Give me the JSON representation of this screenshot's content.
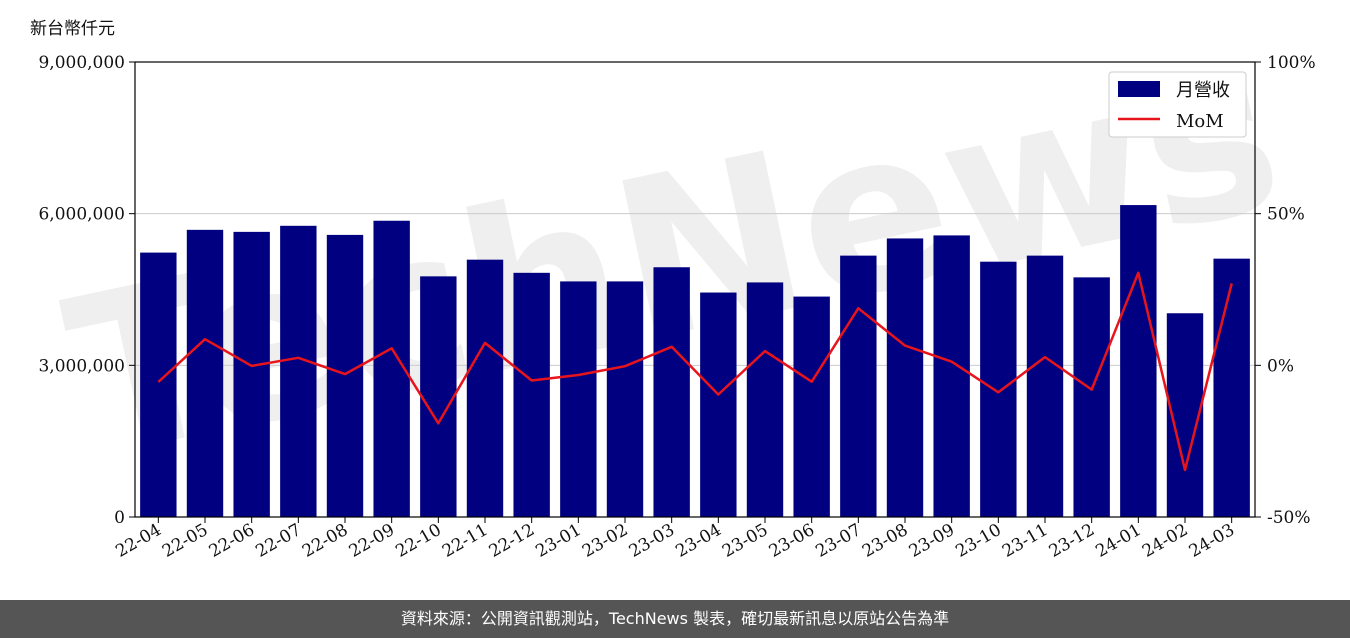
{
  "unit_label": "新台幣仟元",
  "footer": "資料來源：公開資訊觀測站，TechNews 製表，確切最新訊息以原站公告為準",
  "watermark": "TechNews",
  "colors": {
    "bar": "#000080",
    "line": "#e8141c",
    "grid": "#cccccc"
  },
  "chart_data": {
    "type": "bar",
    "categories": [
      "22-04",
      "22-05",
      "22-06",
      "22-07",
      "22-08",
      "22-09",
      "22-10",
      "22-11",
      "22-12",
      "23-01",
      "23-02",
      "23-03",
      "23-04",
      "23-05",
      "23-06",
      "23-07",
      "23-08",
      "23-09",
      "23-10",
      "23-11",
      "23-12",
      "24-01",
      "24-02",
      "24-03"
    ],
    "series": [
      {
        "name": "月營收",
        "type": "bar",
        "axis": "left",
        "values": [
          5230000,
          5680000,
          5640000,
          5760000,
          5580000,
          5860000,
          4760000,
          5090000,
          4830000,
          4660000,
          4660000,
          4940000,
          4440000,
          4640000,
          4360000,
          5170000,
          5510000,
          5570000,
          5050000,
          5170000,
          4740000,
          6170000,
          4030000,
          5110000
        ]
      },
      {
        "name": "MoM",
        "type": "line",
        "axis": "right",
        "values": [
          -5.5,
          8.6,
          -0.2,
          2.5,
          -2.9,
          5.6,
          -19.1,
          7.4,
          -5.0,
          -3.2,
          -0.3,
          6.1,
          -9.6,
          4.7,
          -5.4,
          18.8,
          6.5,
          1.2,
          -8.9,
          2.7,
          -8.0,
          30.5,
          -34.5,
          27.0
        ]
      }
    ],
    "y_left": {
      "ylim": [
        0,
        9000000
      ],
      "ticks": [
        0,
        3000000,
        6000000,
        9000000
      ],
      "tick_labels": [
        "0",
        "3,000,000",
        "6,000,000",
        "9,000,000"
      ]
    },
    "y_right": {
      "ylim": [
        -50,
        100
      ],
      "ticks": [
        -50,
        0,
        50,
        100
      ],
      "tick_labels": [
        "-50%",
        "0%",
        "50%",
        "100%"
      ]
    },
    "grid": true,
    "legend": "top-right"
  }
}
